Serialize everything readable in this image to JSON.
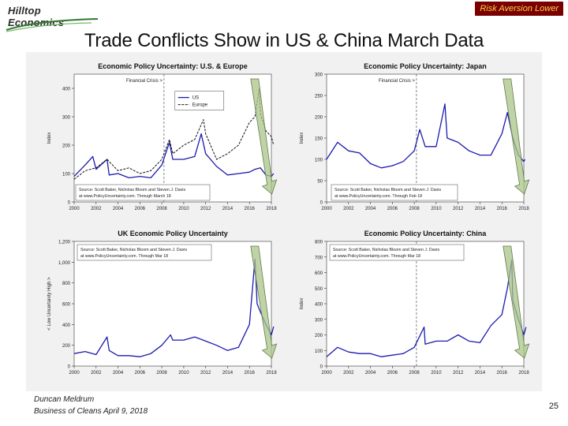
{
  "header": {
    "logo_text": "Hilltop Economics",
    "badge": "Risk Aversion Lower",
    "title": "Trade Conflicts Show in US & China March Data"
  },
  "footer": {
    "line1": "Duncan Meldrum",
    "line2": "Business of Cleans April 9, 2018",
    "page": "25"
  },
  "colors": {
    "series_blue": "#1a1ab0",
    "series_black": "#111111",
    "arrow_green": "#a9c48a"
  },
  "chart_data": [
    {
      "type": "line",
      "title": "Economic Policy Uncertainty: U.S. & Europe",
      "ylabel": "Index",
      "xlim": [
        2000,
        2018
      ],
      "ylim": [
        0,
        450
      ],
      "xticks": [
        "2000",
        "2002",
        "2004",
        "2006",
        "2008",
        "2010",
        "2012",
        "2014",
        "2016",
        "2018"
      ],
      "yticks": [
        0,
        100,
        200,
        300,
        400
      ],
      "annotation": "Financial Crisis >",
      "annotation_x": 2008.2,
      "legend": [
        "US",
        "Europe"
      ],
      "source": [
        "Source: Scott Baker, Nicholas Bloom and Steven J. Davis",
        "at www.PolicyUncertainty.com. Through March 18"
      ],
      "series": [
        {
          "name": "US",
          "style": "blue",
          "x": [
            2000,
            2001,
            2001.7,
            2002,
            2003,
            2003.2,
            2004,
            2005,
            2006,
            2007,
            2008,
            2008.7,
            2009,
            2010,
            2011,
            2011.6,
            2012,
            2013,
            2014,
            2015,
            2016,
            2016.5,
            2017,
            2017.5,
            2018,
            2018.2
          ],
          "y": [
            90,
            130,
            160,
            115,
            150,
            95,
            100,
            85,
            90,
            85,
            130,
            210,
            150,
            150,
            160,
            240,
            170,
            125,
            95,
            100,
            105,
            115,
            120,
            95,
            90,
            100
          ]
        },
        {
          "name": "Europe",
          "style": "black",
          "x": [
            2000,
            2001,
            2002,
            2003,
            2004,
            2005,
            2006,
            2007,
            2008,
            2008.7,
            2009,
            2010,
            2011,
            2011.8,
            2012,
            2013,
            2014,
            2015,
            2016,
            2016.5,
            2016.9,
            2017,
            2017.5,
            2018,
            2018.2
          ],
          "y": [
            80,
            110,
            120,
            150,
            110,
            120,
            100,
            110,
            150,
            220,
            170,
            200,
            220,
            290,
            240,
            150,
            170,
            200,
            280,
            300,
            400,
            310,
            250,
            230,
            200
          ]
        }
      ]
    },
    {
      "type": "line",
      "title": "Economic Policy Uncertainty: Japan",
      "ylabel": "Index",
      "xlim": [
        2000,
        2018
      ],
      "ylim": [
        0,
        300
      ],
      "xticks": [
        "2000",
        "2002",
        "2004",
        "2006",
        "2008",
        "2010",
        "2012",
        "2014",
        "2016",
        "2018"
      ],
      "yticks": [
        0,
        50,
        100,
        150,
        200,
        250,
        300
      ],
      "annotation": "Financial Crisis >",
      "annotation_x": 2008.2,
      "source": [
        "Source: Scott Baker, Nicholas Bloom and Steven J. Davis",
        "at www.PolicyUncertainty.com. Through Feb 18"
      ],
      "series": [
        {
          "name": "Japan",
          "style": "blue",
          "x": [
            2000,
            2001,
            2002,
            2003,
            2004,
            2005,
            2006,
            2007,
            2008,
            2008.5,
            2009,
            2010,
            2010.8,
            2011,
            2012,
            2013,
            2014,
            2015,
            2016,
            2016.5,
            2017,
            2017.5,
            2018,
            2018.1
          ],
          "y": [
            100,
            140,
            120,
            115,
            90,
            80,
            85,
            95,
            120,
            170,
            130,
            130,
            230,
            150,
            140,
            120,
            110,
            110,
            160,
            210,
            150,
            110,
            95,
            100
          ]
        }
      ]
    },
    {
      "type": "line",
      "title": "UK Economic Policy Uncertainty",
      "ylabel": "< Low Uncertainty High >",
      "xlim": [
        2000,
        2018
      ],
      "ylim": [
        0,
        1200
      ],
      "xticks": [
        "2000",
        "2002",
        "2004",
        "2006",
        "2008",
        "2010",
        "2012",
        "2014",
        "2016",
        "2018"
      ],
      "yticks": [
        "0",
        "200",
        "400",
        "600",
        "800",
        "1,000",
        "1,200"
      ],
      "ytick_values": [
        0,
        200,
        400,
        600,
        800,
        1000,
        1200
      ],
      "source": [
        "Source: Scott Baker, Nicholas Bloom and Steven J. Davis",
        "at www.PolicyUncertainty.com. Through Mar 18"
      ],
      "series": [
        {
          "name": "UK",
          "style": "blue",
          "x": [
            2000,
            2001,
            2002,
            2003,
            2003.2,
            2004,
            2005,
            2006,
            2007,
            2008,
            2008.8,
            2009,
            2010,
            2011,
            2012,
            2013,
            2014,
            2015,
            2016,
            2016.5,
            2016.7,
            2017,
            2017.5,
            2018,
            2018.2
          ],
          "y": [
            120,
            140,
            110,
            280,
            150,
            100,
            100,
            90,
            120,
            200,
            300,
            250,
            250,
            280,
            240,
            200,
            150,
            180,
            400,
            1030,
            600,
            520,
            400,
            300,
            380
          ]
        }
      ]
    },
    {
      "type": "line",
      "title": "Economic Policy Uncertainty: China",
      "ylabel": "Index",
      "xlim": [
        2000,
        2018
      ],
      "ylim": [
        0,
        800
      ],
      "xticks": [
        "2000",
        "2002",
        "2004",
        "2006",
        "2008",
        "2010",
        "2012",
        "2014",
        "2016",
        "2018"
      ],
      "yticks": [
        0,
        100,
        200,
        300,
        400,
        500,
        600,
        700,
        800
      ],
      "annotation_x": 2008.2,
      "source": [
        "Source: Scott Baker, Nicholas Bloom and Steven J. Davis",
        "at www.PolicyUncertainty.com. Through Mar 18"
      ],
      "series": [
        {
          "name": "China",
          "style": "blue",
          "x": [
            2000,
            2001,
            2002,
            2003,
            2004,
            2005,
            2006,
            2007,
            2008,
            2008.9,
            2009,
            2010,
            2011,
            2012,
            2013,
            2014,
            2015,
            2016,
            2016.5,
            2016.9,
            2017,
            2017.5,
            2018,
            2018.2
          ],
          "y": [
            60,
            120,
            90,
            80,
            80,
            60,
            70,
            80,
            120,
            250,
            140,
            160,
            160,
            200,
            160,
            150,
            260,
            330,
            500,
            680,
            420,
            300,
            200,
            250
          ]
        }
      ]
    }
  ]
}
